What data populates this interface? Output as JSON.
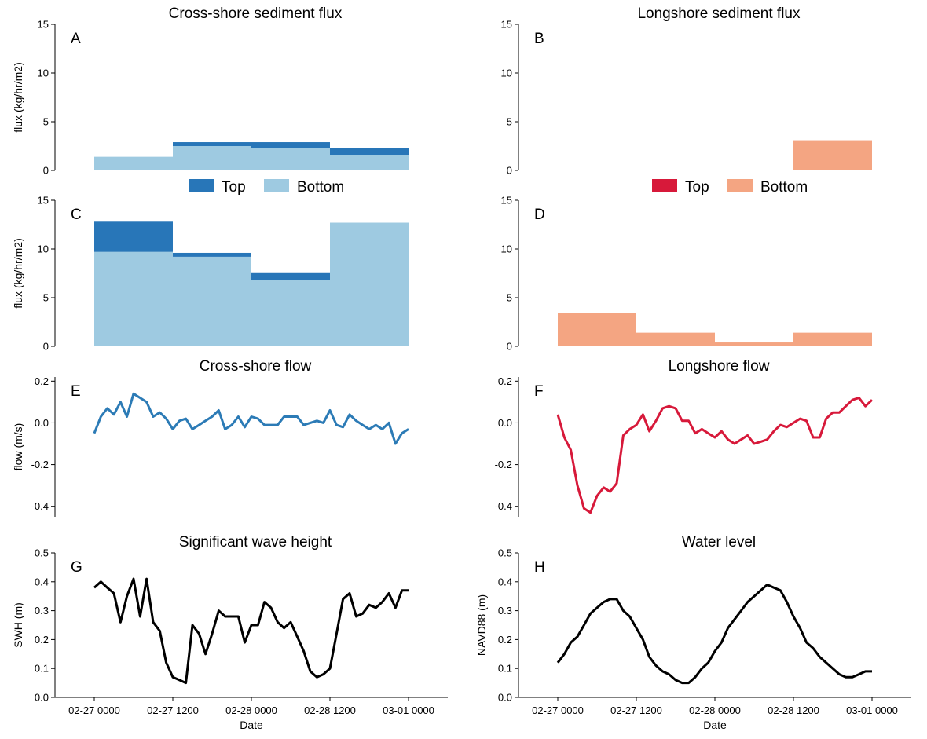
{
  "colors": {
    "cross_top": "#2876b8",
    "cross_bottom": "#9ecae1",
    "long_top": "#d7193a",
    "long_bottom": "#f4a582",
    "cross_line": "#2c7bb6",
    "long_line": "#d7193a",
    "black_line": "#000000",
    "zero_line": "#9a9a9a"
  },
  "legends": [
    {
      "items": [
        {
          "label": "Top",
          "color": "#2876b8"
        },
        {
          "label": "Bottom",
          "color": "#9ecae1"
        }
      ]
    },
    {
      "items": [
        {
          "label": "Top",
          "color": "#d7193a"
        },
        {
          "label": "Bottom",
          "color": "#f4a582"
        }
      ]
    }
  ],
  "chart_data": [
    {
      "id": "A",
      "letter": "A",
      "type": "bar",
      "stacked": true,
      "title": "Cross-shore sediment flux",
      "xlabel": "",
      "ylabel": "flux (kg/hr/m2)",
      "ylim": [
        0,
        15
      ],
      "yticks": [
        "0",
        "5",
        "10",
        "15"
      ],
      "zero_line": false,
      "xlim": [
        -0.25,
        2.25
      ],
      "bins": [
        [
          0,
          0.5
        ],
        [
          0.5,
          1.0
        ],
        [
          1.0,
          1.5
        ],
        [
          1.5,
          2.0
        ]
      ],
      "series": [
        {
          "name": "Bottom",
          "color": "#9ecae1",
          "values": [
            1.4,
            2.5,
            2.3,
            1.6
          ]
        },
        {
          "name": "Top",
          "color": "#2876b8",
          "values": [
            0.0,
            0.4,
            0.6,
            0.7
          ]
        }
      ]
    },
    {
      "id": "B",
      "letter": "B",
      "type": "bar",
      "stacked": true,
      "title": "Longshore sediment flux",
      "xlabel": "",
      "ylabel": "",
      "ylim": [
        0,
        15
      ],
      "yticks": [
        "0",
        "5",
        "10",
        "15"
      ],
      "zero_line": false,
      "xlim": [
        -0.25,
        2.25
      ],
      "bins": [
        [
          0,
          0.5
        ],
        [
          0.5,
          1.0
        ],
        [
          1.0,
          1.5
        ],
        [
          1.5,
          2.0
        ]
      ],
      "series": [
        {
          "name": "Bottom",
          "color": "#f4a582",
          "values": [
            0,
            0,
            0,
            3.1
          ]
        },
        {
          "name": "Top",
          "color": "#d7193a",
          "values": [
            0,
            0,
            0,
            0
          ]
        }
      ]
    },
    {
      "id": "C",
      "letter": "C",
      "type": "bar",
      "stacked": true,
      "title": "",
      "xlabel": "",
      "ylabel": "flux (kg/hr/m2)",
      "ylim": [
        0,
        15
      ],
      "yticks": [
        "0",
        "5",
        "10",
        "15"
      ],
      "zero_line": false,
      "xlim": [
        -0.25,
        2.25
      ],
      "bins": [
        [
          0,
          0.5
        ],
        [
          0.5,
          1.0
        ],
        [
          1.0,
          1.5
        ],
        [
          1.5,
          2.0
        ]
      ],
      "series": [
        {
          "name": "Bottom",
          "color": "#9ecae1",
          "values": [
            9.7,
            9.2,
            6.8,
            12.7
          ]
        },
        {
          "name": "Top",
          "color": "#2876b8",
          "values": [
            3.1,
            0.4,
            0.8,
            0.0
          ]
        }
      ]
    },
    {
      "id": "D",
      "letter": "D",
      "type": "bar",
      "stacked": true,
      "title": "",
      "xlabel": "",
      "ylabel": "",
      "ylim": [
        0,
        15
      ],
      "yticks": [
        "0",
        "5",
        "10",
        "15"
      ],
      "zero_line": false,
      "xlim": [
        -0.25,
        2.25
      ],
      "bins": [
        [
          0,
          0.5
        ],
        [
          0.5,
          1.0
        ],
        [
          1.0,
          1.5
        ],
        [
          1.5,
          2.0
        ]
      ],
      "series": [
        {
          "name": "Bottom",
          "color": "#f4a582",
          "values": [
            3.4,
            1.4,
            0.4,
            1.4
          ]
        },
        {
          "name": "Top",
          "color": "#d7193a",
          "values": [
            0,
            0,
            0,
            0
          ]
        }
      ]
    },
    {
      "id": "E",
      "letter": "E",
      "type": "line",
      "title": "Cross-shore flow",
      "xlabel": "",
      "ylabel": "flow (m/s)",
      "ylim": [
        -0.45,
        0.22
      ],
      "yticks": [
        "-0.4",
        "-0.2",
        "0.0",
        "0.2"
      ],
      "zero_line": true,
      "xlim": [
        -0.25,
        2.25
      ],
      "color": "#2c7bb6",
      "x": [
        0,
        0.042,
        0.083,
        0.125,
        0.167,
        0.208,
        0.25,
        0.292,
        0.333,
        0.375,
        0.417,
        0.458,
        0.5,
        0.542,
        0.583,
        0.625,
        0.667,
        0.708,
        0.75,
        0.792,
        0.833,
        0.875,
        0.917,
        0.958,
        1.0,
        1.042,
        1.083,
        1.125,
        1.167,
        1.208,
        1.25,
        1.292,
        1.333,
        1.375,
        1.417,
        1.458,
        1.5,
        1.542,
        1.583,
        1.625,
        1.667,
        1.708,
        1.75,
        1.792,
        1.833,
        1.875,
        1.917,
        1.958,
        2.0
      ],
      "values": [
        -0.05,
        0.03,
        0.07,
        0.04,
        0.1,
        0.03,
        0.14,
        0.12,
        0.1,
        0.03,
        0.05,
        0.02,
        -0.03,
        0.01,
        0.02,
        -0.03,
        -0.01,
        0.01,
        0.03,
        0.06,
        -0.03,
        -0.01,
        0.03,
        -0.02,
        0.03,
        0.02,
        -0.01,
        -0.01,
        -0.01,
        0.03,
        0.03,
        0.03,
        -0.01,
        0.0,
        0.01,
        0.0,
        0.06,
        -0.01,
        -0.02,
        0.04,
        0.01,
        -0.01,
        -0.03,
        -0.01,
        -0.03,
        0.0,
        -0.1,
        -0.05,
        -0.03
      ]
    },
    {
      "id": "F",
      "letter": "F",
      "type": "line",
      "title": "Longshore flow",
      "xlabel": "",
      "ylabel": "",
      "ylim": [
        -0.45,
        0.22
      ],
      "yticks": [
        "-0.4",
        "-0.2",
        "0.0",
        "0.2"
      ],
      "zero_line": true,
      "xlim": [
        -0.25,
        2.25
      ],
      "color": "#d7193a",
      "x": [
        0,
        0.042,
        0.083,
        0.125,
        0.167,
        0.208,
        0.25,
        0.292,
        0.333,
        0.375,
        0.417,
        0.458,
        0.5,
        0.542,
        0.583,
        0.625,
        0.667,
        0.708,
        0.75,
        0.792,
        0.833,
        0.875,
        0.917,
        0.958,
        1.0,
        1.042,
        1.083,
        1.125,
        1.167,
        1.208,
        1.25,
        1.292,
        1.333,
        1.375,
        1.417,
        1.458,
        1.5,
        1.542,
        1.583,
        1.625,
        1.667,
        1.708,
        1.75,
        1.792,
        1.833,
        1.875,
        1.917,
        1.958,
        2.0
      ],
      "values": [
        0.04,
        -0.07,
        -0.13,
        -0.3,
        -0.41,
        -0.43,
        -0.35,
        -0.31,
        -0.33,
        -0.29,
        -0.06,
        -0.03,
        -0.01,
        0.04,
        -0.04,
        0.01,
        0.07,
        0.08,
        0.07,
        0.01,
        0.01,
        -0.05,
        -0.03,
        -0.05,
        -0.07,
        -0.04,
        -0.08,
        -0.1,
        -0.08,
        -0.06,
        -0.1,
        -0.09,
        -0.08,
        -0.04,
        -0.01,
        -0.02,
        0.0,
        0.02,
        0.01,
        -0.07,
        -0.07,
        0.02,
        0.05,
        0.05,
        0.08,
        0.11,
        0.12,
        0.08,
        0.11
      ]
    },
    {
      "id": "G",
      "letter": "G",
      "type": "line",
      "title": "Significant wave height",
      "xlabel": "Date",
      "ylabel": "SWH (m)",
      "ylim": [
        0,
        0.5
      ],
      "yticks": [
        "0.0",
        "0.1",
        "0.2",
        "0.3",
        "0.4",
        "0.5"
      ],
      "zero_line": false,
      "xlim": [
        -0.25,
        2.25
      ],
      "color": "#000000",
      "xtick_values": [
        0,
        0.5,
        1,
        1.5,
        2
      ],
      "xtick_labels": [
        "02-27 0000",
        "02-27 1200",
        "02-28 0000",
        "02-28 1200",
        "03-01 0000"
      ],
      "x": [
        0,
        0.042,
        0.083,
        0.125,
        0.167,
        0.208,
        0.25,
        0.292,
        0.333,
        0.375,
        0.417,
        0.458,
        0.5,
        0.542,
        0.583,
        0.625,
        0.667,
        0.708,
        0.75,
        0.792,
        0.833,
        0.875,
        0.917,
        0.958,
        1.0,
        1.042,
        1.083,
        1.125,
        1.167,
        1.208,
        1.25,
        1.292,
        1.333,
        1.375,
        1.417,
        1.458,
        1.5,
        1.542,
        1.583,
        1.625,
        1.667,
        1.708,
        1.75,
        1.792,
        1.833,
        1.875,
        1.917,
        1.958,
        2.0
      ],
      "values": [
        0.38,
        0.4,
        0.38,
        0.36,
        0.26,
        0.35,
        0.41,
        0.28,
        0.41,
        0.26,
        0.23,
        0.12,
        0.07,
        0.06,
        0.05,
        0.25,
        0.22,
        0.15,
        0.22,
        0.3,
        0.28,
        0.28,
        0.28,
        0.19,
        0.25,
        0.25,
        0.33,
        0.31,
        0.26,
        0.24,
        0.26,
        0.21,
        0.16,
        0.09,
        0.07,
        0.08,
        0.1,
        0.22,
        0.34,
        0.36,
        0.28,
        0.29,
        0.32,
        0.31,
        0.33,
        0.36,
        0.31,
        0.37,
        0.37
      ]
    },
    {
      "id": "H",
      "letter": "H",
      "type": "line",
      "title": "Water level",
      "xlabel": "Date",
      "ylabel": "NAVD88 (m)",
      "ylim": [
        0,
        0.5
      ],
      "yticks": [
        "0.0",
        "0.1",
        "0.2",
        "0.3",
        "0.4",
        "0.5"
      ],
      "zero_line": false,
      "xlim": [
        -0.25,
        2.25
      ],
      "color": "#000000",
      "xtick_values": [
        0,
        0.5,
        1,
        1.5,
        2
      ],
      "xtick_labels": [
        "02-27 0000",
        "02-27 1200",
        "02-28 0000",
        "02-28 1200",
        "03-01 0000"
      ],
      "x": [
        0,
        0.042,
        0.083,
        0.125,
        0.167,
        0.208,
        0.25,
        0.292,
        0.333,
        0.375,
        0.417,
        0.458,
        0.5,
        0.542,
        0.583,
        0.625,
        0.667,
        0.708,
        0.75,
        0.792,
        0.833,
        0.875,
        0.917,
        0.958,
        1.0,
        1.042,
        1.083,
        1.125,
        1.167,
        1.208,
        1.25,
        1.292,
        1.333,
        1.375,
        1.417,
        1.458,
        1.5,
        1.542,
        1.583,
        1.625,
        1.667,
        1.708,
        1.75,
        1.792,
        1.833,
        1.875,
        1.917,
        1.958,
        2.0
      ],
      "values": [
        0.12,
        0.15,
        0.19,
        0.21,
        0.25,
        0.29,
        0.31,
        0.33,
        0.34,
        0.34,
        0.3,
        0.28,
        0.24,
        0.2,
        0.14,
        0.11,
        0.09,
        0.08,
        0.06,
        0.05,
        0.05,
        0.07,
        0.1,
        0.12,
        0.16,
        0.19,
        0.24,
        0.27,
        0.3,
        0.33,
        0.35,
        0.37,
        0.39,
        0.38,
        0.37,
        0.33,
        0.28,
        0.24,
        0.19,
        0.17,
        0.14,
        0.12,
        0.1,
        0.08,
        0.07,
        0.07,
        0.08,
        0.09,
        0.09
      ]
    }
  ]
}
